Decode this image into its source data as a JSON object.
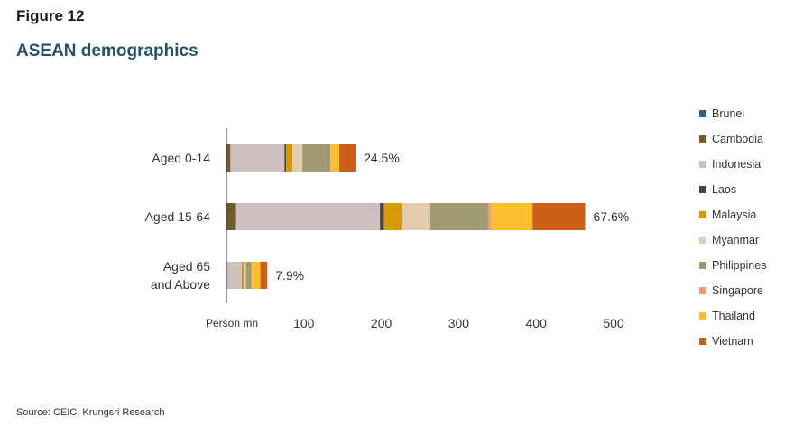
{
  "header": {
    "figure_label": "Figure 12",
    "title": "ASEAN demographics"
  },
  "footer": {
    "source": "Source: CEIC, Krungsri Research"
  },
  "chart_data": {
    "type": "bar",
    "orientation": "horizontal",
    "stacked": true,
    "categories": [
      "Aged 0-14",
      "Aged 15-64",
      "Aged 65 and Above"
    ],
    "category_lines": [
      [
        "Aged 0-14"
      ],
      [
        "Aged 15-64"
      ],
      [
        "Aged 65",
        "and Above"
      ]
    ],
    "xlabel": "Person mn",
    "xlim": [
      0,
      500
    ],
    "xticks": [
      100,
      200,
      300,
      400,
      500
    ],
    "grid": false,
    "legend_position": "right",
    "series": [
      {
        "name": "Brunei",
        "color": "#2e5f8a",
        "values": [
          0.1,
          0.3,
          0.03
        ]
      },
      {
        "name": "Cambodia",
        "color": "#735a28",
        "values": [
          5,
          11,
          0.8
        ]
      },
      {
        "name": "Indonesia",
        "color": "#cdbfbf",
        "values": [
          70,
          187,
          19
        ]
      },
      {
        "name": "Laos",
        "color": "#4a4040",
        "values": [
          2,
          5,
          0.3
        ]
      },
      {
        "name": "Malaysia",
        "color": "#d49a00",
        "values": [
          8,
          23,
          2
        ]
      },
      {
        "name": "Myanmar",
        "color": "#e3ccab",
        "values": [
          13,
          37,
          3
        ]
      },
      {
        "name": "Philippines",
        "color": "#a09a72",
        "values": [
          36,
          75,
          7
        ]
      },
      {
        "name": "Singapore",
        "color": "#ee9a72",
        "values": [
          0.7,
          4,
          0.6
        ]
      },
      {
        "name": "Thailand",
        "color": "#fdbf2d",
        "values": [
          11,
          53,
          11
        ]
      },
      {
        "name": "Vietnam",
        "color": "#cc6018",
        "values": [
          21,
          68,
          9
        ]
      }
    ],
    "data_labels": [
      "24.5%",
      "67.6%",
      "7.9%"
    ]
  }
}
